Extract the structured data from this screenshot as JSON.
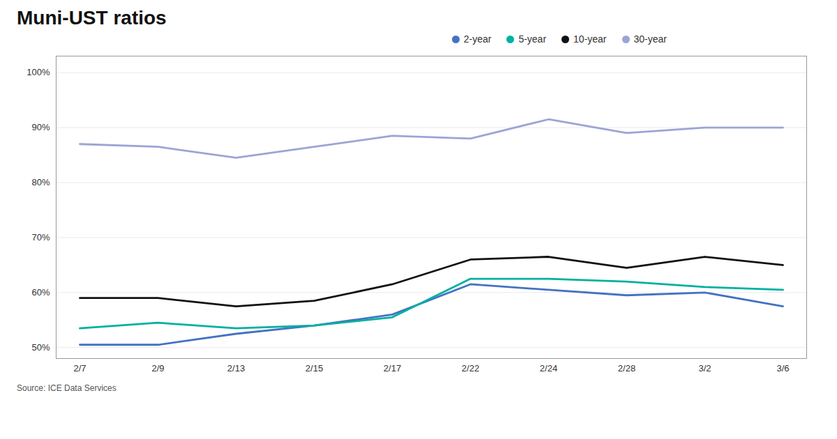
{
  "chart_data": {
    "type": "line",
    "title": "Muni-UST ratios",
    "source": "Source: ICE Data Services",
    "categories": [
      "2/7",
      "2/9",
      "2/13",
      "2/15",
      "2/17",
      "2/22",
      "2/24",
      "2/28",
      "3/2",
      "3/6"
    ],
    "series": [
      {
        "name": "2-year",
        "color": "#4472C4",
        "values": [
          50.5,
          50.5,
          52.5,
          54.0,
          56.0,
          61.5,
          60.5,
          59.5,
          60.0,
          57.5
        ]
      },
      {
        "name": "5-year",
        "color": "#00B0A0",
        "values": [
          53.5,
          54.5,
          53.5,
          54.0,
          55.5,
          62.5,
          62.5,
          62.0,
          61.0,
          60.5
        ]
      },
      {
        "name": "10-year",
        "color": "#111111",
        "values": [
          59.0,
          59.0,
          57.5,
          58.5,
          61.5,
          66.0,
          66.5,
          64.5,
          66.5,
          65.0
        ]
      },
      {
        "name": "30-year",
        "color": "#9BA5D5",
        "values": [
          87.0,
          86.5,
          84.5,
          86.5,
          88.5,
          88.0,
          91.5,
          89.0,
          90.0,
          90.0
        ]
      }
    ],
    "ylim": [
      48,
      103
    ],
    "yticks": [
      {
        "value": 50,
        "label": "50%"
      },
      {
        "value": 60,
        "label": "60%"
      },
      {
        "value": 70,
        "label": "70%"
      },
      {
        "value": 80,
        "label": "80%"
      },
      {
        "value": 90,
        "label": "90%"
      },
      {
        "value": 100,
        "label": "100%"
      }
    ],
    "grid": true,
    "legend": "top"
  }
}
